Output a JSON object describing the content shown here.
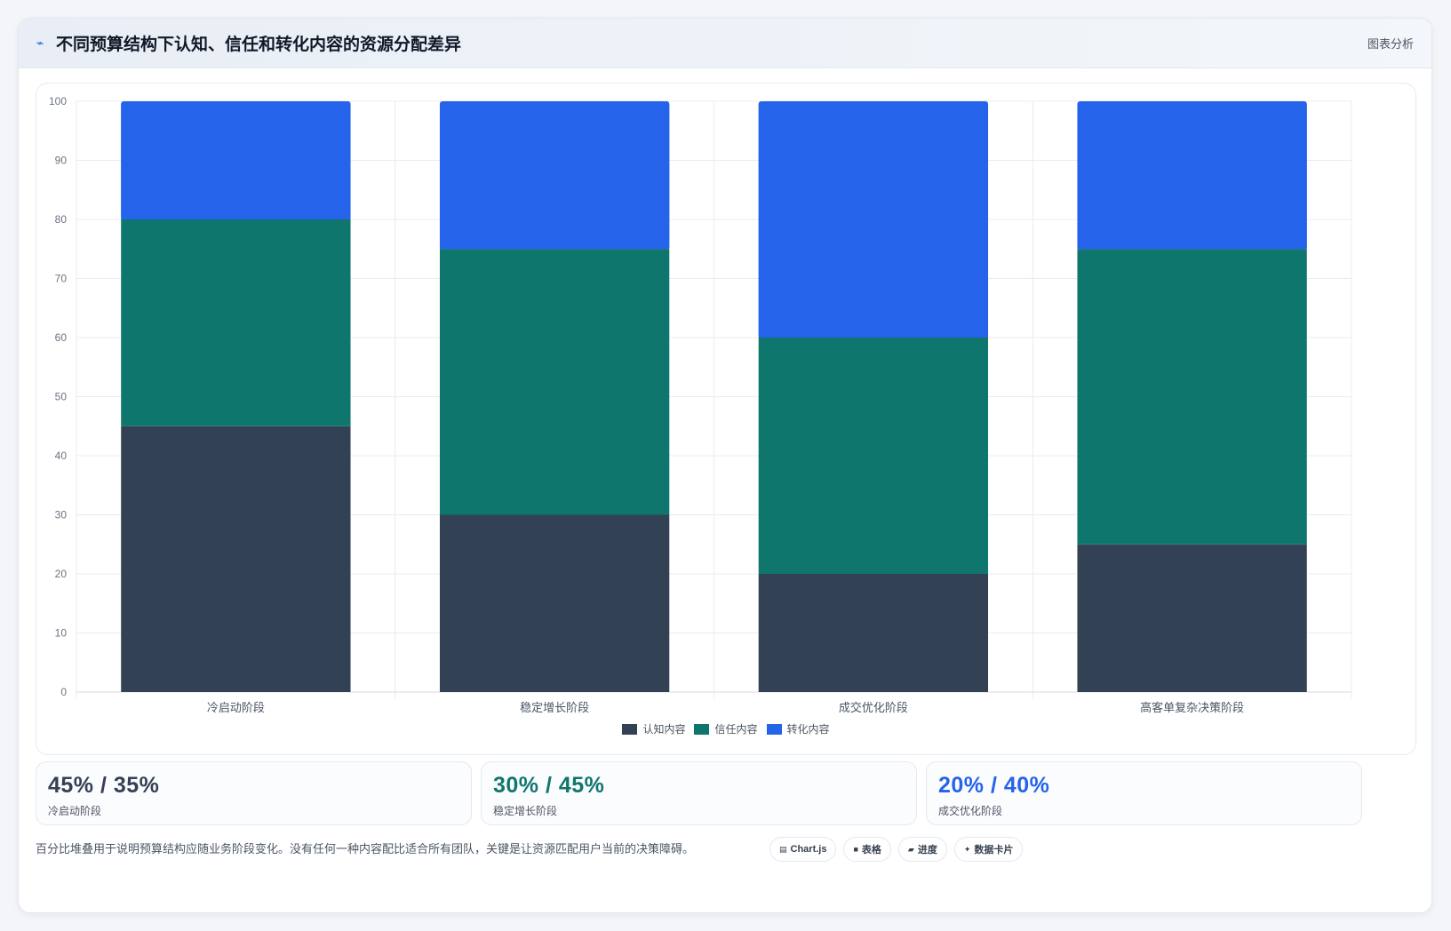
{
  "header": {
    "icon": "trend-icon",
    "title": "不同预算结构下认知、信任和转化内容的资源分配差异",
    "tag": "图表分析"
  },
  "colors": {
    "awareness": "#334155",
    "trust": "#0f766e",
    "conversion": "#2563eb"
  },
  "chart_data": {
    "type": "bar",
    "stacked": true,
    "categories": [
      "冷启动阶段",
      "稳定增长阶段",
      "成交优化阶段",
      "高客单复杂决策阶段"
    ],
    "series": [
      {
        "name": "认知内容",
        "color": "#334155",
        "values": [
          45,
          30,
          20,
          25
        ]
      },
      {
        "name": "信任内容",
        "color": "#0f766e",
        "values": [
          35,
          45,
          40,
          50
        ]
      },
      {
        "name": "转化内容",
        "color": "#2563eb",
        "values": [
          20,
          25,
          40,
          25
        ]
      }
    ],
    "ylim": [
      0,
      100
    ],
    "yticks": [
      0,
      10,
      20,
      30,
      40,
      50,
      60,
      70,
      80,
      90,
      100
    ],
    "grid": true,
    "legend": "bottom"
  },
  "stats": [
    {
      "value": "45% / 35%",
      "label": "冷启动阶段",
      "color": "#334155"
    },
    {
      "value": "30% / 45%",
      "label": "稳定增长阶段",
      "color": "#0f766e"
    },
    {
      "value": "20% / 40%",
      "label": "成交优化阶段",
      "color": "#2563eb"
    }
  ],
  "footnote": "百分比堆叠用于说明预算结构应随业务阶段变化。没有任何一种内容配比适合所有团队，关键是让资源匹配用户当前的决策障碍。",
  "chips": [
    {
      "icon": "chart-icon",
      "glyph": "▤",
      "label": "Chart.js"
    },
    {
      "icon": "table-icon",
      "glyph": "■",
      "label": "表格"
    },
    {
      "icon": "progress-icon",
      "glyph": "▰",
      "label": "进度"
    },
    {
      "icon": "sparkle-icon",
      "glyph": "✦",
      "label": "数据卡片"
    }
  ]
}
